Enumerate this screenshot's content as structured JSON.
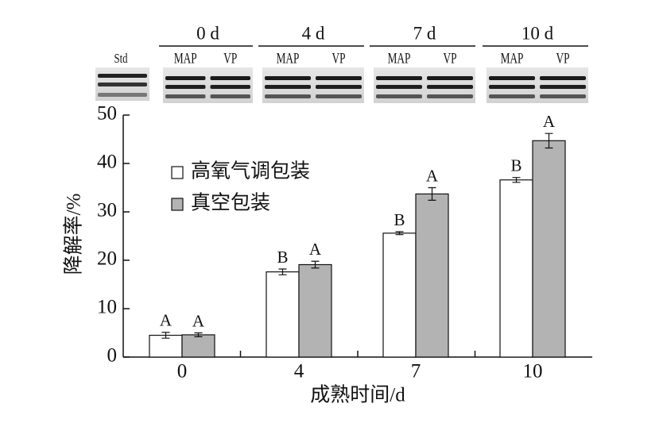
{
  "gel_panel": {
    "std_label": "Std",
    "groups": [
      {
        "label": "0 d",
        "lanes": [
          "MAP",
          "VP"
        ]
      },
      {
        "label": "4 d",
        "lanes": [
          "MAP",
          "VP"
        ]
      },
      {
        "label": "7 d",
        "lanes": [
          "MAP",
          "VP"
        ]
      },
      {
        "label": "10 d",
        "lanes": [
          "MAP",
          "VP"
        ]
      }
    ]
  },
  "chart_data": {
    "type": "bar",
    "x_label": "成熟时间/d",
    "y_label": "降解率/%",
    "categories": [
      "0",
      "4",
      "7",
      "10"
    ],
    "series": [
      {
        "name": "高氧气调包装",
        "color": "#ffffff",
        "values": [
          4.5,
          17.6,
          25.6,
          36.6
        ],
        "errors": [
          0.6,
          0.6,
          0.3,
          0.5
        ],
        "significance": [
          "A",
          "B",
          "B",
          "B"
        ]
      },
      {
        "name": "真空包装",
        "color": "#b3b3b3",
        "values": [
          4.6,
          19.1,
          33.7,
          44.7
        ],
        "errors": [
          0.4,
          0.7,
          1.3,
          1.5
        ],
        "significance": [
          "A",
          "A",
          "A",
          "A"
        ]
      }
    ],
    "ylim": [
      0,
      50
    ],
    "yticks": [
      0,
      10,
      20,
      30,
      40,
      50
    ],
    "grid": false,
    "legend": "upper left"
  }
}
